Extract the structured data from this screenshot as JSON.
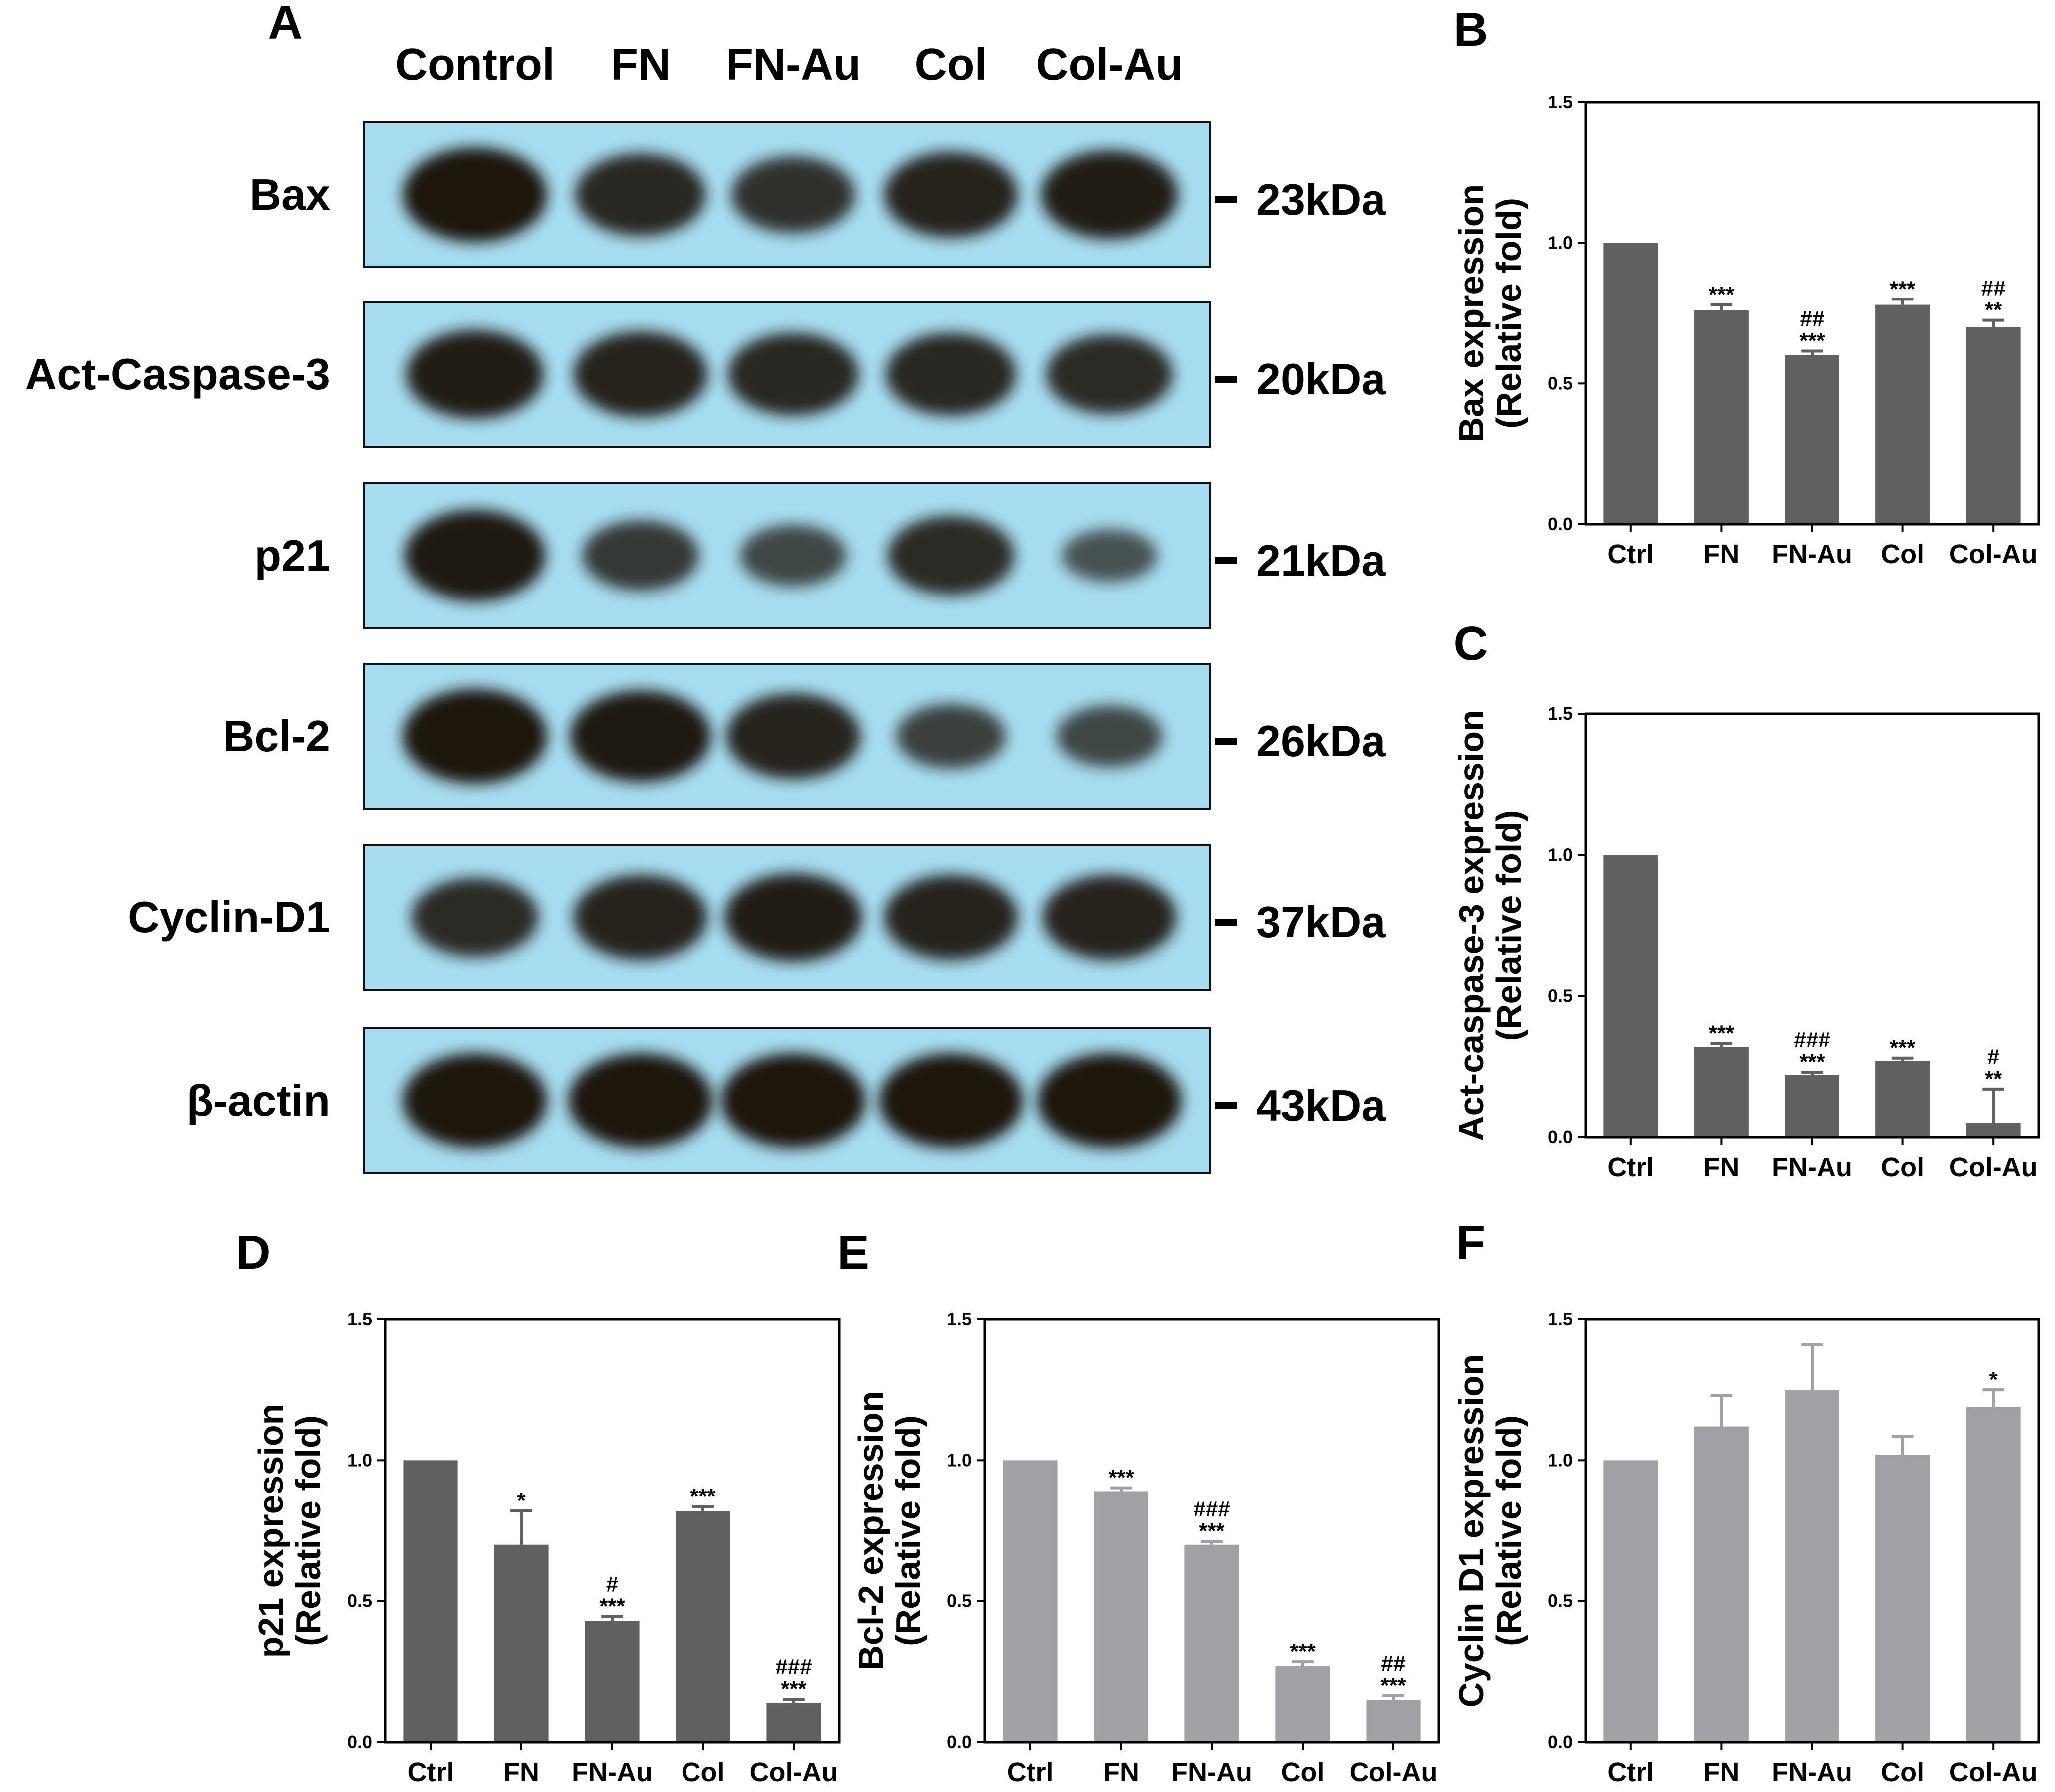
{
  "panel_labels": {
    "A": "A",
    "B": "B",
    "C": "C",
    "D": "D",
    "E": "E",
    "F": "F"
  },
  "western_blot": {
    "lanes": [
      "Control",
      "FN",
      "FN-Au",
      "Col",
      "Col-Au"
    ],
    "rows": [
      {
        "label": "Bax",
        "marker": "23kDa",
        "intensities": [
          1.0,
          0.8,
          0.7,
          0.85,
          0.9
        ]
      },
      {
        "label": "Act-Caspase-3",
        "marker": "20kDa",
        "intensities": [
          0.9,
          0.85,
          0.8,
          0.8,
          0.75
        ]
      },
      {
        "label": "p21",
        "marker": "21kDa",
        "intensities": [
          0.95,
          0.6,
          0.45,
          0.75,
          0.3
        ]
      },
      {
        "label": "Bcl-2",
        "marker": "26kDa",
        "intensities": [
          1.0,
          0.95,
          0.85,
          0.5,
          0.45
        ]
      },
      {
        "label": "Cyclin-D1",
        "marker": "37kDa",
        "intensities": [
          0.75,
          0.85,
          0.9,
          0.85,
          0.85
        ]
      },
      {
        "label": "β-actin",
        "marker": "43kDa",
        "intensities": [
          1.0,
          1.0,
          1.0,
          1.0,
          1.0
        ]
      }
    ],
    "colors": {
      "membrane": "#a6dcef",
      "band": "#1e160d"
    }
  },
  "chart_data": [
    {
      "panel": "B",
      "type": "bar",
      "categories": [
        "Ctrl",
        "FN",
        "FN-Au",
        "Col",
        "Col-Au"
      ],
      "values": [
        1.0,
        0.76,
        0.6,
        0.78,
        0.7
      ],
      "errors": [
        0,
        0.02,
        0.015,
        0.02,
        0.025
      ],
      "annotations": [
        [],
        [
          "***"
        ],
        [
          "##",
          "***"
        ],
        [
          "***"
        ],
        [
          "##",
          "**"
        ]
      ],
      "ylabel": [
        "Bax expression",
        "(Relative fold)"
      ],
      "ylim": [
        0,
        1.5
      ],
      "yticks": [
        "0.0",
        "0.5",
        "1.0",
        "1.5"
      ],
      "bar_color": "#606060"
    },
    {
      "panel": "C",
      "type": "bar",
      "categories": [
        "Ctrl",
        "FN",
        "FN-Au",
        "Col",
        "Col-Au"
      ],
      "values": [
        1.0,
        0.32,
        0.22,
        0.27,
        0.05
      ],
      "errors": [
        0,
        0.012,
        0.01,
        0.01,
        0.12
      ],
      "annotations": [
        [],
        [
          "***"
        ],
        [
          "###",
          "***"
        ],
        [
          "***"
        ],
        [
          "#",
          "**"
        ]
      ],
      "ylabel": [
        "Act-caspase-3 expression",
        "(Relative fold)"
      ],
      "ylim": [
        0,
        1.5
      ],
      "yticks": [
        "0.0",
        "0.5",
        "1.0",
        "1.5"
      ],
      "bar_color": "#606060"
    },
    {
      "panel": "D",
      "type": "bar",
      "categories": [
        "Ctrl",
        "FN",
        "FN-Au",
        "Col",
        "Col-Au"
      ],
      "values": [
        1.0,
        0.7,
        0.43,
        0.82,
        0.14
      ],
      "errors": [
        0,
        0.12,
        0.015,
        0.015,
        0.012
      ],
      "annotations": [
        [],
        [
          "*"
        ],
        [
          "#",
          "***"
        ],
        [
          "***"
        ],
        [
          "###",
          "***"
        ]
      ],
      "ylabel": [
        "p21 expression",
        "(Relative fold)"
      ],
      "ylim": [
        0,
        1.5
      ],
      "yticks": [
        "0.0",
        "0.5",
        "1.0",
        "1.5"
      ],
      "bar_color": "#606060"
    },
    {
      "panel": "E",
      "type": "bar",
      "categories": [
        "Ctrl",
        "FN",
        "FN-Au",
        "Col",
        "Col-Au"
      ],
      "values": [
        1.0,
        0.89,
        0.7,
        0.27,
        0.15
      ],
      "errors": [
        0,
        0.012,
        0.012,
        0.015,
        0.015
      ],
      "annotations": [
        [],
        [
          "***"
        ],
        [
          "###",
          "***"
        ],
        [
          "***"
        ],
        [
          "##",
          "***"
        ]
      ],
      "ylabel": [
        "Bcl-2 expression",
        "(Relative fold)"
      ],
      "ylim": [
        0,
        1.5
      ],
      "yticks": [
        "0.0",
        "0.5",
        "1.0",
        "1.5"
      ],
      "bar_color": "#a0a0a5"
    },
    {
      "panel": "F",
      "type": "bar",
      "categories": [
        "Ctrl",
        "FN",
        "FN-Au",
        "Col",
        "Col-Au"
      ],
      "values": [
        1.0,
        1.12,
        1.25,
        1.02,
        1.19
      ],
      "errors": [
        0,
        0.11,
        0.16,
        0.065,
        0.06
      ],
      "annotations": [
        [],
        [],
        [],
        [],
        [
          "*"
        ]
      ],
      "ylabel": [
        "Cyclin D1 expression",
        "(Relative fold)"
      ],
      "ylim": [
        0,
        1.5
      ],
      "yticks": [
        "0.0",
        "0.5",
        "1.0",
        "1.5"
      ],
      "bar_color": "#a0a0a5"
    }
  ]
}
